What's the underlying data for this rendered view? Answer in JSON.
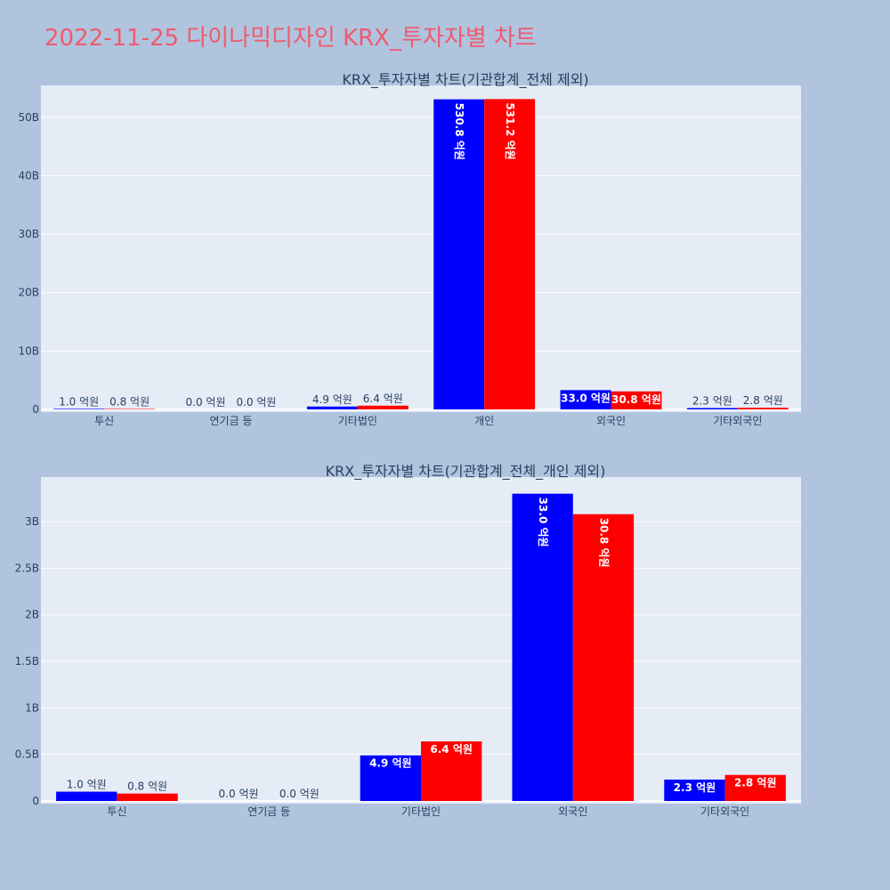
{
  "page": {
    "title": "2022-11-25 다이나믹디자인 KRX_투자자별 차트"
  },
  "colors": {
    "series1": "#0000ff",
    "series2": "#ff0000",
    "background": "#b0c4de",
    "plot_bg": "#e5ecf6",
    "title": "#ef5a6f"
  },
  "chart_data": [
    {
      "type": "bar",
      "title": "KRX_투자자별 차트(기관합계_전체 제외)",
      "categories": [
        "투신",
        "연기금 등",
        "기타법인",
        "개인",
        "외국인",
        "기타외국인"
      ],
      "series": [
        {
          "values": [
            0.1,
            0.0,
            0.49,
            53.08,
            3.3,
            0.23
          ],
          "labels": [
            "1.0 억원",
            "0.0 억원",
            "4.9 억원",
            "530.8 억원",
            "33.0 억원",
            "2.3 억원"
          ]
        },
        {
          "values": [
            0.08,
            0.0,
            0.64,
            53.12,
            3.08,
            0.28
          ],
          "labels": [
            "0.8 억원",
            "0.0 억원",
            "6.4 억원",
            "531.2 억원",
            "30.8 억원",
            "2.8 억원"
          ]
        }
      ],
      "yunit": "B",
      "ylim": [
        0,
        55
      ],
      "yticks": [
        0,
        10,
        20,
        30,
        40,
        50
      ],
      "ytick_labels": [
        "0",
        "10B",
        "20B",
        "30B",
        "40B",
        "50B"
      ],
      "grid": true
    },
    {
      "type": "bar",
      "title": "KRX_투자자별 차트(기관합계_전체_개인 제외)",
      "categories": [
        "투신",
        "연기금 등",
        "기타법인",
        "외국인",
        "기타외국인"
      ],
      "series": [
        {
          "values": [
            0.1,
            0.0,
            0.49,
            3.3,
            0.23
          ],
          "labels": [
            "1.0 억원",
            "0.0 억원",
            "4.9 억원",
            "33.0 억원",
            "2.3 억원"
          ]
        },
        {
          "values": [
            0.08,
            0.0,
            0.64,
            3.08,
            0.28
          ],
          "labels": [
            "0.8 억원",
            "0.0 억원",
            "6.4 억원",
            "30.8 억원",
            "2.8 억원"
          ]
        }
      ],
      "yunit": "B",
      "ylim": [
        0,
        3.45
      ],
      "yticks": [
        0,
        0.5,
        1,
        1.5,
        2,
        2.5,
        3
      ],
      "ytick_labels": [
        "0",
        "0.5B",
        "1B",
        "1.5B",
        "2B",
        "2.5B",
        "3B"
      ],
      "grid": true
    }
  ]
}
